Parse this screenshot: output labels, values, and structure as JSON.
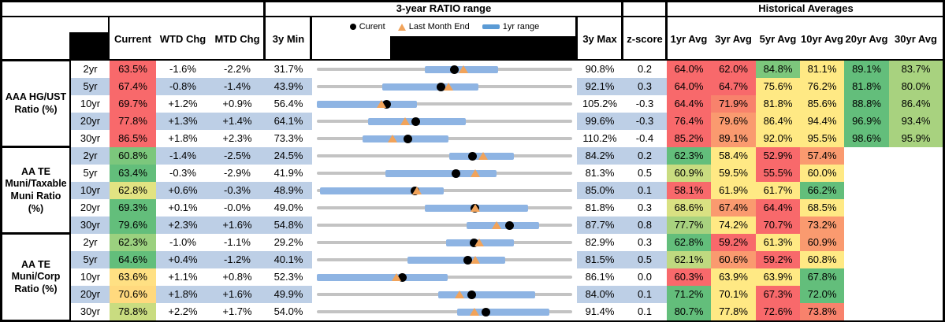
{
  "header": {
    "range_title": "3-year RATIO range",
    "hist_title": "Historical Averages",
    "legend": {
      "current": "Curent",
      "last_month": "Last Month End",
      "range": "1yr range"
    },
    "columns": {
      "current": "Current",
      "wtd": "WTD Chg",
      "mtd": "MTD Chg",
      "min": "3y Min",
      "max": "3y Max",
      "z": "z-score"
    },
    "avg_columns": [
      "1yr Avg",
      "3yr Avg",
      "5yr Avg",
      "10yr Avg",
      "20yr Avg",
      "30yr Avg"
    ]
  },
  "style": {
    "band_blue": "#BDCFE6",
    "bar_blue": "#8EB4E3",
    "track_gray": "#C3C3C3",
    "triangle_orange": "#F1A35A",
    "red": "#F8696B",
    "yellow": "#FFE984",
    "green": "#63BE7B"
  },
  "groups": [
    {
      "label": "AAA HG/UST Ratio (%)",
      "rows": [
        {
          "tenor": "2yr",
          "current": {
            "v": "63.5%",
            "c": "#F8696B"
          },
          "wtd": "-1.6%",
          "mtd": "-2.2%",
          "min": "31.7%",
          "max": "90.8%",
          "z": "0.2",
          "avgs": [
            {
              "v": "64.0%",
              "c": "#F8696B"
            },
            {
              "v": "62.0%",
              "c": "#F8696B"
            },
            {
              "v": "84.8%",
              "c": "#7CC77C"
            },
            {
              "v": "81.1%",
              "c": "#FFE984"
            },
            {
              "v": "89.1%",
              "c": "#63BE7B"
            },
            {
              "v": "83.7%",
              "c": "#A8D27F"
            }
          ]
        },
        {
          "tenor": "5yr",
          "current": {
            "v": "67.4%",
            "c": "#F8696B"
          },
          "wtd": "-0.8%",
          "mtd": "-1.4%",
          "min": "43.9%",
          "max": "92.1%",
          "z": "0.3",
          "avgs": [
            {
              "v": "64.0%",
              "c": "#F8696B"
            },
            {
              "v": "64.7%",
              "c": "#F8696B"
            },
            {
              "v": "75.6%",
              "c": "#FFE984"
            },
            {
              "v": "76.2%",
              "c": "#FFE984"
            },
            {
              "v": "81.8%",
              "c": "#63BE7B"
            },
            {
              "v": "80.0%",
              "c": "#A8D27F"
            }
          ]
        },
        {
          "tenor": "10yr",
          "current": {
            "v": "69.7%",
            "c": "#F8696B"
          },
          "wtd": "+1.2%",
          "mtd": "+0.9%",
          "min": "56.4%",
          "max": "105.2%",
          "z": "-0.3",
          "avgs": [
            {
              "v": "64.4%",
              "c": "#F8696B"
            },
            {
              "v": "71.9%",
              "c": "#F8826C"
            },
            {
              "v": "81.8%",
              "c": "#FFE984"
            },
            {
              "v": "85.6%",
              "c": "#FFE984"
            },
            {
              "v": "88.8%",
              "c": "#63BE7B"
            },
            {
              "v": "86.4%",
              "c": "#A8D27F"
            }
          ]
        },
        {
          "tenor": "20yr",
          "current": {
            "v": "77.8%",
            "c": "#F8696B"
          },
          "wtd": "+1.3%",
          "mtd": "+1.4%",
          "min": "64.1%",
          "max": "99.6%",
          "z": "-0.3",
          "avgs": [
            {
              "v": "76.4%",
              "c": "#F8696B"
            },
            {
              "v": "79.6%",
              "c": "#FA9A6F"
            },
            {
              "v": "86.4%",
              "c": "#FFE984"
            },
            {
              "v": "94.4%",
              "c": "#FFE984"
            },
            {
              "v": "96.9%",
              "c": "#63BE7B"
            },
            {
              "v": "93.4%",
              "c": "#A8D27F"
            }
          ]
        },
        {
          "tenor": "30yr",
          "current": {
            "v": "86.5%",
            "c": "#F8696B"
          },
          "wtd": "+1.8%",
          "mtd": "+2.3%",
          "min": "73.3%",
          "max": "110.2%",
          "z": "-0.4",
          "avgs": [
            {
              "v": "85.2%",
              "c": "#F8696B"
            },
            {
              "v": "89.1%",
              "c": "#FA9A6F"
            },
            {
              "v": "92.0%",
              "c": "#FFE984"
            },
            {
              "v": "95.5%",
              "c": "#FFE984"
            },
            {
              "v": "98.6%",
              "c": "#63BE7B"
            },
            {
              "v": "95.9%",
              "c": "#A8D27F"
            }
          ]
        }
      ]
    },
    {
      "label": "AA TE Muni/Taxable Muni Ratio (%)",
      "rows": [
        {
          "tenor": "2yr",
          "current": {
            "v": "60.8%",
            "c": "#7CC77C"
          },
          "wtd": "-1.4%",
          "mtd": "-2.5%",
          "min": "24.5%",
          "max": "84.2%",
          "z": "0.2",
          "avgs": [
            {
              "v": "62.3%",
              "c": "#63BE7B"
            },
            {
              "v": "58.4%",
              "c": "#FFE984"
            },
            {
              "v": "52.9%",
              "c": "#F8696B"
            },
            {
              "v": "57.4%",
              "c": "#FA9A6F"
            },
            null,
            null
          ]
        },
        {
          "tenor": "5yr",
          "current": {
            "v": "63.4%",
            "c": "#63BE7B"
          },
          "wtd": "-0.3%",
          "mtd": "-2.9%",
          "min": "41.9%",
          "max": "81.3%",
          "z": "0.5",
          "avgs": [
            {
              "v": "60.9%",
              "c": "#C9DC80"
            },
            {
              "v": "59.5%",
              "c": "#FFE984"
            },
            {
              "v": "55.5%",
              "c": "#F8696B"
            },
            {
              "v": "60.0%",
              "c": "#FFE984"
            },
            null,
            null
          ]
        },
        {
          "tenor": "10yr",
          "current": {
            "v": "62.8%",
            "c": "#E2E382"
          },
          "wtd": "+0.6%",
          "mtd": "-0.3%",
          "min": "48.9%",
          "max": "85.0%",
          "z": "0.1",
          "avgs": [
            {
              "v": "58.1%",
              "c": "#F8696B"
            },
            {
              "v": "61.9%",
              "c": "#FFE984"
            },
            {
              "v": "61.7%",
              "c": "#FFE984"
            },
            {
              "v": "66.2%",
              "c": "#63BE7B"
            },
            null,
            null
          ]
        },
        {
          "tenor": "20yr",
          "current": {
            "v": "69.3%",
            "c": "#63BE7B"
          },
          "wtd": "+0.1%",
          "mtd": "-0.0%",
          "min": "49.0%",
          "max": "81.8%",
          "z": "0.3",
          "avgs": [
            {
              "v": "68.6%",
              "c": "#D9E182"
            },
            {
              "v": "67.4%",
              "c": "#FA9A6F"
            },
            {
              "v": "64.4%",
              "c": "#F8696B"
            },
            {
              "v": "68.5%",
              "c": "#FFE984"
            },
            null,
            null
          ]
        },
        {
          "tenor": "30yr",
          "current": {
            "v": "79.6%",
            "c": "#63BE7B"
          },
          "wtd": "+2.3%",
          "mtd": "+1.6%",
          "min": "54.8%",
          "max": "87.7%",
          "z": "0.8",
          "avgs": [
            {
              "v": "77.7%",
              "c": "#A8D27F"
            },
            {
              "v": "74.2%",
              "c": "#FFE984"
            },
            {
              "v": "70.7%",
              "c": "#F8696B"
            },
            {
              "v": "73.2%",
              "c": "#FA9A6F"
            },
            null,
            null
          ]
        }
      ]
    },
    {
      "label": "AA TE Muni/Corp Ratio (%)",
      "rows": [
        {
          "tenor": "2yr",
          "current": {
            "v": "62.3%",
            "c": "#9BD17F"
          },
          "wtd": "-1.0%",
          "mtd": "-1.1%",
          "min": "29.2%",
          "max": "82.9%",
          "z": "0.3",
          "avgs": [
            {
              "v": "62.8%",
              "c": "#63BE7B"
            },
            {
              "v": "59.2%",
              "c": "#F8696B"
            },
            {
              "v": "61.3%",
              "c": "#FFE984"
            },
            {
              "v": "60.9%",
              "c": "#FA9A6F"
            },
            null,
            null
          ]
        },
        {
          "tenor": "5yr",
          "current": {
            "v": "64.6%",
            "c": "#63BE7B"
          },
          "wtd": "+0.4%",
          "mtd": "-1.2%",
          "min": "40.1%",
          "max": "81.5%",
          "z": "0.5",
          "avgs": [
            {
              "v": "62.1%",
              "c": "#BFD980"
            },
            {
              "v": "60.6%",
              "c": "#FA9A6F"
            },
            {
              "v": "59.2%",
              "c": "#F8696B"
            },
            {
              "v": "60.8%",
              "c": "#FFE984"
            },
            null,
            null
          ]
        },
        {
          "tenor": "10yr",
          "current": {
            "v": "63.6%",
            "c": "#FFE083"
          },
          "wtd": "+1.1%",
          "mtd": "+0.8%",
          "min": "52.3%",
          "max": "86.1%",
          "z": "0.0",
          "avgs": [
            {
              "v": "60.3%",
              "c": "#F8696B"
            },
            {
              "v": "63.9%",
              "c": "#FFE984"
            },
            {
              "v": "63.9%",
              "c": "#FFE984"
            },
            {
              "v": "67.8%",
              "c": "#63BE7B"
            },
            null,
            null
          ]
        },
        {
          "tenor": "20yr",
          "current": {
            "v": "70.6%",
            "c": "#FFD97E"
          },
          "wtd": "+1.8%",
          "mtd": "+1.6%",
          "min": "49.9%",
          "max": "84.0%",
          "z": "0.1",
          "avgs": [
            {
              "v": "71.2%",
              "c": "#63BE7B"
            },
            {
              "v": "70.1%",
              "c": "#FFE984"
            },
            {
              "v": "67.3%",
              "c": "#F8696B"
            },
            {
              "v": "72.0%",
              "c": "#63BE7B"
            },
            null,
            null
          ]
        },
        {
          "tenor": "30yr",
          "current": {
            "v": "78.8%",
            "c": "#C9DC80"
          },
          "wtd": "+2.2%",
          "mtd": "+1.7%",
          "min": "54.0%",
          "max": "91.4%",
          "z": "0.1",
          "avgs": [
            {
              "v": "80.7%",
              "c": "#63BE7B"
            },
            {
              "v": "77.8%",
              "c": "#FFE984"
            },
            {
              "v": "72.6%",
              "c": "#F8696B"
            },
            {
              "v": "73.8%",
              "c": "#F8826C"
            },
            null,
            null
          ]
        }
      ]
    }
  ],
  "chart_data": {
    "type": "dot_range",
    "title": "3-year RATIO range",
    "legend": [
      "Curent",
      "Last Month End",
      "1yr range"
    ],
    "x_unit": "ratio %",
    "series": [
      {
        "group": "AAA HG/UST Ratio (%)",
        "rows": [
          {
            "tenor": "2yr",
            "min": 31.7,
            "max": 90.8,
            "range_1yr": [
              56.6,
              73.6
            ],
            "current": 63.5,
            "last_month_end": 65.7
          },
          {
            "tenor": "5yr",
            "min": 43.9,
            "max": 92.1,
            "range_1yr": [
              56.2,
              74.4
            ],
            "current": 67.4,
            "last_month_end": 68.8
          },
          {
            "tenor": "10yr",
            "min": 56.4,
            "max": 105.2,
            "range_1yr": [
              56.4,
              75.5
            ],
            "current": 69.7,
            "last_month_end": 68.8
          },
          {
            "tenor": "20yr",
            "min": 64.1,
            "max": 99.6,
            "range_1yr": [
              71.2,
              84.8
            ],
            "current": 77.8,
            "last_month_end": 76.4
          },
          {
            "tenor": "30yr",
            "min": 73.3,
            "max": 110.2,
            "range_1yr": [
              79.9,
              92.3
            ],
            "current": 86.5,
            "last_month_end": 84.2
          }
        ]
      },
      {
        "group": "AA TE Muni/Taxable Muni Ratio (%)",
        "rows": [
          {
            "tenor": "2yr",
            "min": 24.5,
            "max": 84.2,
            "range_1yr": [
              55.4,
              70.5
            ],
            "current": 60.8,
            "last_month_end": 63.3
          },
          {
            "tenor": "5yr",
            "min": 41.9,
            "max": 81.3,
            "range_1yr": [
              52.5,
              69.6
            ],
            "current": 63.4,
            "last_month_end": 66.3
          },
          {
            "tenor": "10yr",
            "min": 48.9,
            "max": 85.0,
            "range_1yr": [
              49.3,
              66.8
            ],
            "current": 62.8,
            "last_month_end": 63.1
          },
          {
            "tenor": "20yr",
            "min": 49.0,
            "max": 81.8,
            "range_1yr": [
              62.9,
              76.1
            ],
            "current": 69.3,
            "last_month_end": 69.3
          },
          {
            "tenor": "30yr",
            "min": 54.8,
            "max": 87.7,
            "range_1yr": [
              74.1,
              83.4
            ],
            "current": 79.6,
            "last_month_end": 78.0
          }
        ]
      },
      {
        "group": "AA TE Muni/Corp Ratio (%)",
        "rows": [
          {
            "tenor": "2yr",
            "min": 29.2,
            "max": 82.9,
            "range_1yr": [
              56.4,
              70.7
            ],
            "current": 62.3,
            "last_month_end": 63.4
          },
          {
            "tenor": "5yr",
            "min": 40.1,
            "max": 81.5,
            "range_1yr": [
              54.8,
              70.6
            ],
            "current": 64.6,
            "last_month_end": 65.8
          },
          {
            "tenor": "10yr",
            "min": 52.3,
            "max": 86.1,
            "range_1yr": [
              52.3,
              69.6
            ],
            "current": 63.6,
            "last_month_end": 62.8
          },
          {
            "tenor": "20yr",
            "min": 49.9,
            "max": 84.0,
            "range_1yr": [
              66.1,
              79.1
            ],
            "current": 70.6,
            "last_month_end": 69.0
          },
          {
            "tenor": "30yr",
            "min": 54.0,
            "max": 91.4,
            "range_1yr": [
              74.6,
              88.0
            ],
            "current": 78.8,
            "last_month_end": 77.1
          }
        ]
      }
    ]
  }
}
